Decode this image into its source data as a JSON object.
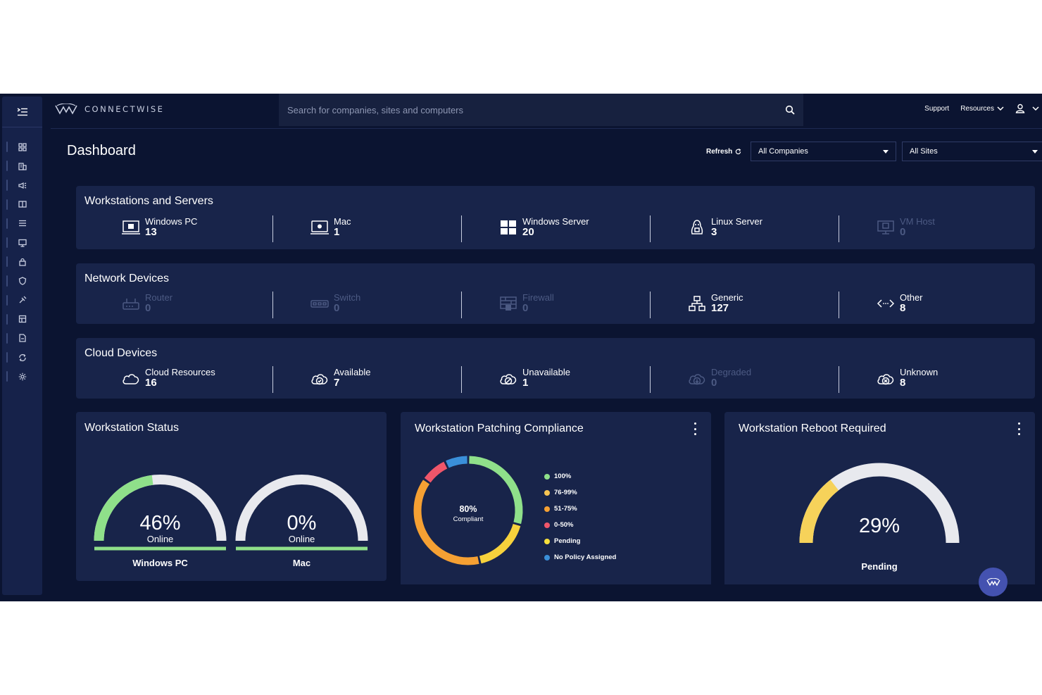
{
  "app": {
    "brand": "CONNECTWISE",
    "search_placeholder": "Search for companies, sites and computers",
    "top_links": {
      "support": "Support",
      "resources": "Resources"
    }
  },
  "page": {
    "title": "Dashboard",
    "refresh_label": "Refresh",
    "company_filter": "All Companies",
    "site_filter": "All Sites"
  },
  "sidebar": {
    "items": [
      "dashboard-icon",
      "companies-icon",
      "announcements-icon",
      "tickets-icon",
      "list-icon",
      "devices-icon",
      "lock-icon",
      "shield-icon",
      "automation-icon",
      "reports-icon",
      "documents-icon",
      "integrations-icon",
      "settings-icon"
    ]
  },
  "workstations": {
    "title": "Workstations and Servers",
    "stats": [
      {
        "label": "Windows PC",
        "value": "13",
        "icon": "windows-pc-icon",
        "active": true
      },
      {
        "label": "Mac",
        "value": "1",
        "icon": "mac-icon",
        "active": true
      },
      {
        "label": "Windows Server",
        "value": "20",
        "icon": "windows-server-icon",
        "active": true
      },
      {
        "label": "Linux Server",
        "value": "3",
        "icon": "linux-icon",
        "active": true
      },
      {
        "label": "VM Host",
        "value": "0",
        "icon": "vm-host-icon",
        "active": false
      }
    ]
  },
  "network": {
    "title": "Network Devices",
    "stats": [
      {
        "label": "Router",
        "value": "0",
        "icon": "router-icon",
        "active": false
      },
      {
        "label": "Switch",
        "value": "0",
        "icon": "switch-icon",
        "active": false
      },
      {
        "label": "Firewall",
        "value": "0",
        "icon": "firewall-icon",
        "active": false
      },
      {
        "label": "Generic",
        "value": "127",
        "icon": "generic-network-icon",
        "active": true
      },
      {
        "label": "Other",
        "value": "8",
        "icon": "other-icon",
        "active": true
      }
    ]
  },
  "cloud": {
    "title": "Cloud Devices",
    "stats": [
      {
        "label": "Cloud Resources",
        "value": "16",
        "icon": "cloud-icon",
        "active": true
      },
      {
        "label": "Available",
        "value": "7",
        "icon": "cloud-check-icon",
        "active": true
      },
      {
        "label": "Unavailable",
        "value": "1",
        "icon": "cloud-off-icon",
        "active": true
      },
      {
        "label": "Degraded",
        "value": "0",
        "icon": "cloud-down-icon",
        "active": false
      },
      {
        "label": "Unknown",
        "value": "8",
        "icon": "cloud-unknown-icon",
        "active": true
      }
    ]
  },
  "workstation_status": {
    "title": "Workstation Status",
    "gauges": [
      {
        "percent_text": "46%",
        "sub": "Online",
        "label": "Windows PC",
        "fraction": 0.46
      },
      {
        "percent_text": "0%",
        "sub": "Online",
        "label": "Mac",
        "fraction": 0.0
      }
    ]
  },
  "patching": {
    "title": "Workstation Patching Compliance",
    "center_value": "80%",
    "center_label": "Compliant",
    "legend": [
      {
        "label": "100%",
        "color": "#8fe08a"
      },
      {
        "label": "76-99%",
        "color": "#f6c453"
      },
      {
        "label": "51-75%",
        "color": "#f5a033"
      },
      {
        "label": "0-50%",
        "color": "#f0566a"
      },
      {
        "label": "Pending",
        "color": "#f7e03c"
      },
      {
        "label": "No Policy Assigned",
        "color": "#3a8fd9"
      }
    ],
    "segments": [
      {
        "name": "100%",
        "fraction": 0.29,
        "color": "#8fe08a"
      },
      {
        "name": "Pending",
        "fraction": 0.17,
        "color": "#f7d23c"
      },
      {
        "name": "51-75%",
        "fraction": 0.38,
        "color": "#f5a033"
      },
      {
        "name": "0-50%",
        "fraction": 0.08,
        "color": "#f0566a"
      },
      {
        "name": "No Policy Assigned",
        "fraction": 0.07,
        "color": "#3a8fd9"
      }
    ]
  },
  "reboot": {
    "title": "Workstation Reboot Required",
    "percent_text": "29%",
    "label": "Pending",
    "fraction": 0.29
  },
  "colors": {
    "background": "#0b1431",
    "card": "#18244a",
    "gauge_green": "#8fe08a",
    "gauge_track": "#e8e9ee",
    "gauge_yellow": "#f6d25a"
  }
}
